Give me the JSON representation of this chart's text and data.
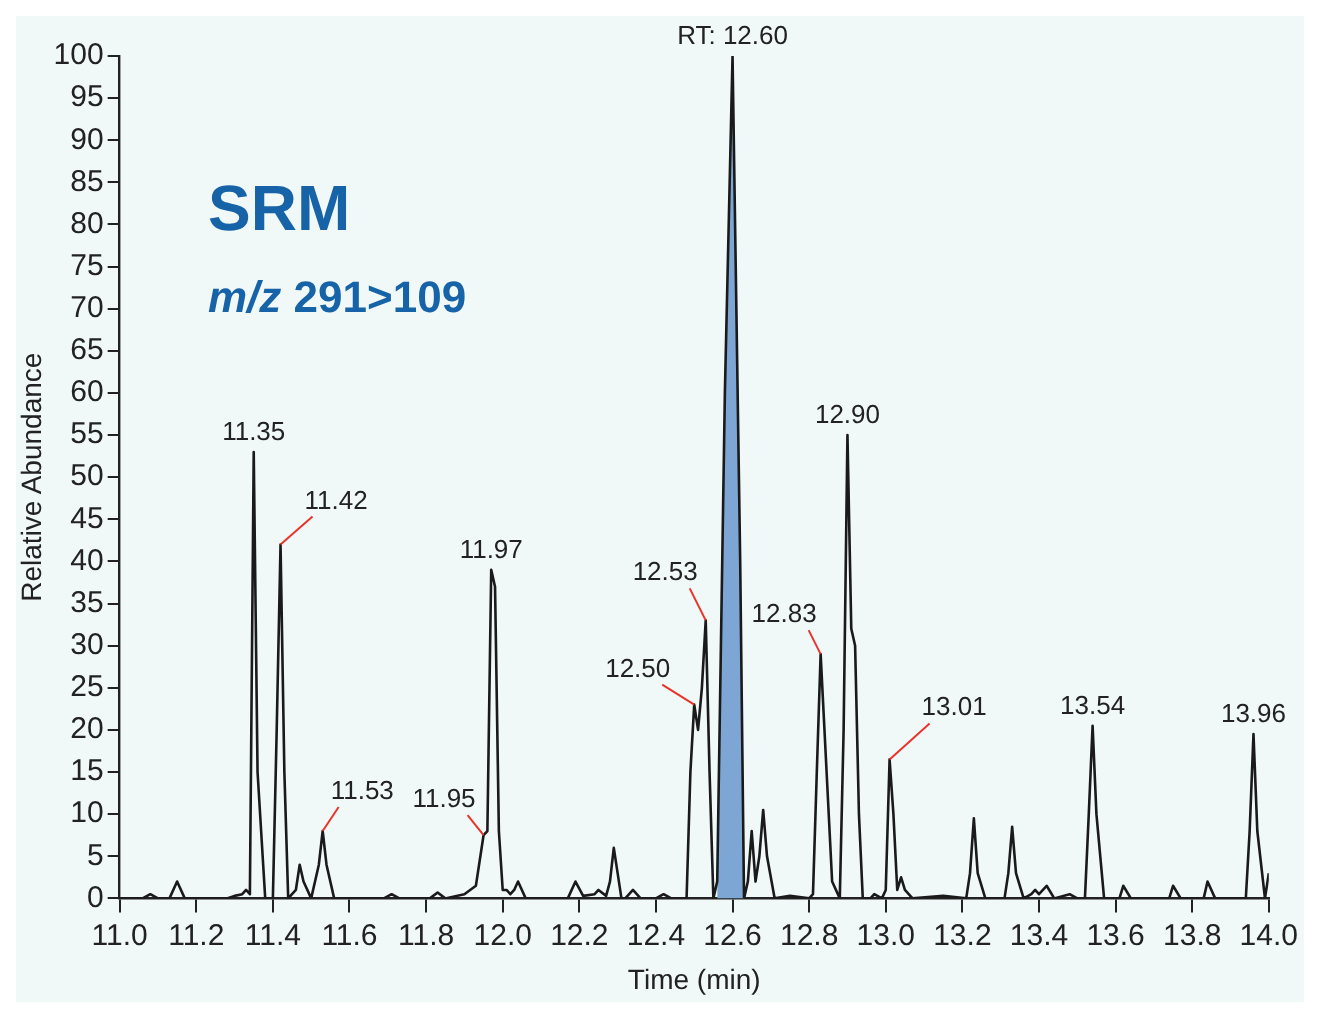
{
  "chart_data": {
    "type": "line",
    "title": "SRM",
    "subtitle": "m/z 291>109",
    "xlabel": "Time (min)",
    "ylabel": "Relative Abundance",
    "xlim": [
      11.0,
      14.0
    ],
    "ylim": [
      0,
      100
    ],
    "xticks": [
      {
        "value": 11,
        "label": "11.0"
      },
      11.2,
      11.4,
      11.6,
      11.8,
      {
        "value": 12,
        "label": "12.0"
      },
      12.2,
      12.4,
      12.6,
      12.8,
      {
        "value": 13,
        "label": "13.0"
      },
      13.2,
      13.4,
      13.6,
      13.8,
      {
        "value": 14,
        "label": "14.0"
      }
    ],
    "yticks": [
      0,
      5,
      10,
      15,
      20,
      25,
      30,
      35,
      40,
      45,
      50,
      55,
      60,
      65,
      70,
      75,
      80,
      85,
      90,
      95,
      100
    ],
    "grid": false,
    "legend": false,
    "marker": "none",
    "series": [
      {
        "type": "line",
        "color": "#1a1a1a",
        "x": [
          11.0,
          11.06,
          11.08,
          11.1,
          11.13,
          11.15,
          11.17,
          11.28,
          11.3,
          11.32,
          11.33,
          11.34,
          11.35,
          11.36,
          11.38,
          11.4,
          11.41,
          11.42,
          11.43,
          11.44,
          11.46,
          11.47,
          11.48,
          11.5,
          11.52,
          11.53,
          11.54,
          11.56,
          11.69,
          11.71,
          11.73,
          11.81,
          11.83,
          11.85,
          11.9,
          11.93,
          11.95,
          11.96,
          11.97,
          11.98,
          11.99,
          12.0,
          12.01,
          12.02,
          12.03,
          12.04,
          12.06,
          12.17,
          12.19,
          12.21,
          12.24,
          12.25,
          12.27,
          12.28,
          12.29,
          12.31,
          12.32,
          12.34,
          12.36,
          12.4,
          12.42,
          12.44,
          12.48,
          12.49,
          12.5,
          12.51,
          12.52,
          12.53,
          12.54,
          12.55,
          12.56,
          12.58,
          12.6,
          12.62,
          12.63,
          12.64,
          12.65,
          12.66,
          12.67,
          12.68,
          12.69,
          12.71,
          12.75,
          12.8,
          12.81,
          12.82,
          12.83,
          12.84,
          12.86,
          12.88,
          12.89,
          12.9,
          12.91,
          12.92,
          12.93,
          12.94,
          12.96,
          12.97,
          12.99,
          13.0,
          13.01,
          13.02,
          13.03,
          13.04,
          13.05,
          13.07,
          13.15,
          13.21,
          13.22,
          13.23,
          13.24,
          13.26,
          13.31,
          13.32,
          13.33,
          13.34,
          13.36,
          13.38,
          13.39,
          13.4,
          13.42,
          13.44,
          13.48,
          13.5,
          13.52,
          13.53,
          13.54,
          13.55,
          13.57,
          13.61,
          13.62,
          13.64,
          13.74,
          13.75,
          13.77,
          13.83,
          13.84,
          13.86,
          13.94,
          13.95,
          13.96,
          13.97,
          13.99,
          14.0
        ],
        "values": [
          0,
          0,
          0.5,
          0,
          0,
          2,
          0,
          0,
          0.3,
          0.5,
          1,
          0.5,
          53,
          15,
          0,
          0,
          20,
          42,
          15,
          0,
          1,
          4,
          2,
          0,
          4,
          8,
          4,
          0,
          0,
          0.5,
          0,
          0,
          0.7,
          0,
          0.5,
          1.5,
          7.5,
          8,
          39,
          37,
          8,
          1,
          1,
          0.5,
          1,
          2,
          0,
          0,
          2,
          0.3,
          0.5,
          1,
          0.3,
          2,
          6,
          0,
          0,
          1,
          0,
          0,
          0.5,
          0,
          0,
          15,
          23,
          20,
          25,
          33,
          15,
          0,
          2,
          60,
          100,
          40,
          0,
          2,
          8,
          2,
          5,
          10.5,
          5,
          0,
          0.3,
          0,
          0.5,
          15,
          29,
          20,
          2,
          0,
          20,
          55,
          32,
          30,
          10,
          0,
          0,
          0.5,
          0,
          1,
          16.5,
          10,
          1,
          2.5,
          1,
          0,
          0.3,
          0,
          3,
          9.5,
          3,
          0,
          0,
          3,
          8.5,
          3,
          0,
          0.5,
          1,
          0.5,
          1.5,
          0,
          0.5,
          0,
          0,
          10,
          20.5,
          10,
          0,
          0,
          1.5,
          0,
          0,
          1.5,
          0,
          0,
          2,
          0,
          0,
          8,
          19.5,
          8,
          0,
          3
        ]
      },
      {
        "type": "area",
        "color": "#7ea6d4",
        "x": [
          12.56,
          12.58,
          12.6,
          12.62,
          12.63
        ],
        "values": [
          2,
          60,
          100,
          40,
          0
        ]
      }
    ],
    "annotations": [
      {
        "text": "RT: 12.60",
        "x": 12.6,
        "y": 100
      },
      {
        "text": "11.35",
        "x": 11.35,
        "y": 53
      },
      {
        "text": "11.42",
        "x": 11.42,
        "y": 42
      },
      {
        "text": "11.53",
        "x": 11.53,
        "y": 8
      },
      {
        "text": "11.95",
        "x": 11.95,
        "y": 7.5
      },
      {
        "text": "11.97",
        "x": 11.97,
        "y": 39
      },
      {
        "text": "12.50",
        "x": 12.5,
        "y": 23
      },
      {
        "text": "12.53",
        "x": 12.53,
        "y": 33
      },
      {
        "text": "12.83",
        "x": 12.83,
        "y": 29
      },
      {
        "text": "12.90",
        "x": 12.9,
        "y": 55
      },
      {
        "text": "13.01",
        "x": 13.01,
        "y": 16.5
      },
      {
        "text": "13.54",
        "x": 13.54,
        "y": 20.5
      },
      {
        "text": "13.96",
        "x": 13.96,
        "y": 19.5
      }
    ]
  }
}
